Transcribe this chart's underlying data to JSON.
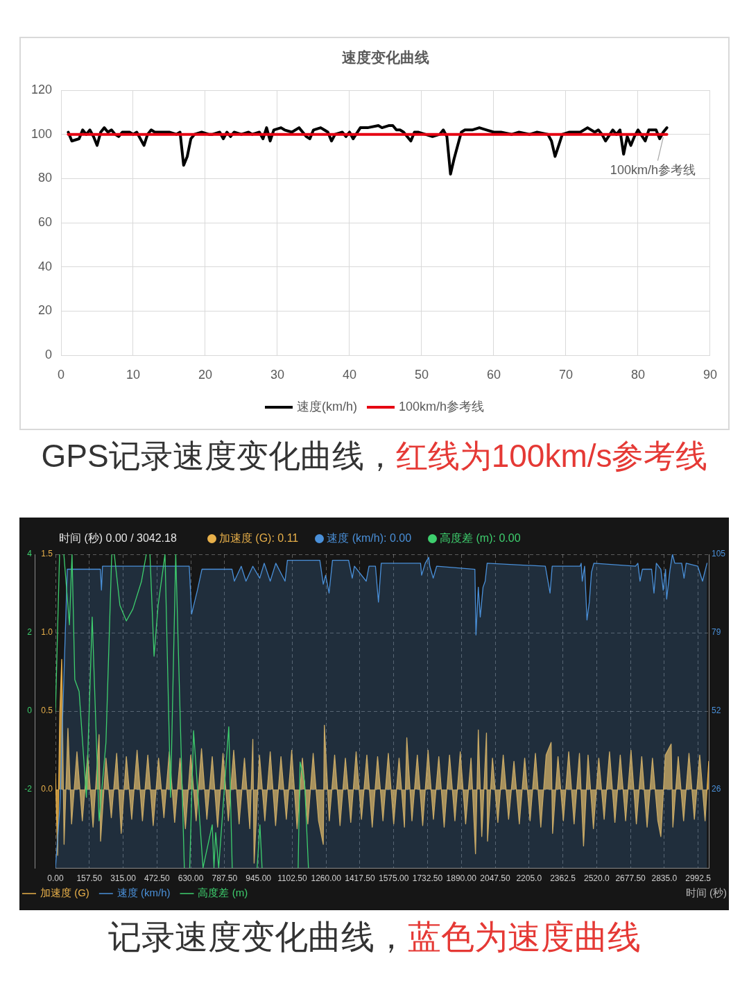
{
  "chart_data": [
    {
      "type": "line",
      "title": "速度变化曲线",
      "xlim": [
        0,
        90
      ],
      "xticks": [
        0,
        10,
        20,
        30,
        40,
        50,
        60,
        70,
        80,
        90
      ],
      "ylim": [
        0,
        120
      ],
      "yticks": [
        0,
        20,
        40,
        60,
        80,
        100,
        120
      ],
      "grid": true,
      "legend": "bottom",
      "series": [
        {
          "name": "速度(km/h)",
          "color": "#000000",
          "x": [
            1,
            1.5,
            2.5,
            3,
            3.5,
            4,
            4.5,
            5,
            5.5,
            6,
            6.5,
            7,
            7.5,
            8,
            8.5,
            9,
            9.5,
            10,
            10.5,
            11.5,
            12,
            12.5,
            13,
            14,
            15,
            16,
            16.5,
            17,
            17.5,
            18,
            18.5,
            19.5,
            20.5,
            21,
            22,
            22.5,
            23,
            23.5,
            24,
            25,
            26,
            26.5,
            27.5,
            28,
            28.5,
            29,
            29.5,
            30.5,
            31,
            32,
            33,
            34,
            34.5,
            35,
            36,
            36.5,
            37,
            37.5,
            38,
            39,
            39.5,
            40,
            40.5,
            41.5,
            42.5,
            44,
            44.5,
            45.5,
            46,
            46.5,
            47,
            47.5,
            48.5,
            49,
            49.5,
            50.5,
            51.5,
            52.5,
            53,
            53.5,
            54,
            54.5,
            55,
            55.5,
            56,
            57,
            58,
            59,
            60,
            61,
            62.5,
            63.5,
            65,
            66,
            67.5,
            68,
            68.5,
            69,
            69.5,
            70.5,
            72,
            73,
            74,
            74.5,
            75,
            75.5,
            76.5,
            77,
            77.5,
            78,
            78.5,
            79,
            79.5,
            80,
            81,
            81.5,
            82.5,
            83,
            83.5,
            84
          ],
          "values": [
            101,
            97,
            98,
            102,
            100,
            102,
            99,
            95,
            101,
            103,
            101,
            102,
            100,
            99,
            101,
            101,
            101,
            100,
            101,
            95,
            100,
            102,
            101,
            101,
            101,
            100,
            101,
            86,
            90,
            98,
            100,
            101,
            100,
            100,
            101,
            98,
            101,
            99,
            101,
            100,
            101,
            100,
            101,
            98,
            103,
            97,
            102,
            103,
            102,
            101,
            103,
            99,
            98,
            102,
            103,
            102,
            101,
            97,
            100,
            101,
            99,
            101,
            98,
            103,
            103,
            104,
            103,
            104,
            104,
            102,
            102,
            101,
            97,
            101,
            101,
            100,
            99,
            100,
            102,
            99,
            82,
            89,
            95,
            101,
            102,
            102,
            103,
            102,
            101,
            101,
            100,
            101,
            100,
            101,
            100,
            97,
            90,
            95,
            100,
            101,
            101,
            103,
            101,
            102,
            100,
            97,
            102,
            100,
            102,
            91,
            99,
            95,
            99,
            102,
            97,
            102,
            102,
            98,
            101,
            103
          ]
        },
        {
          "name": "100km/h参考线",
          "color": "#e60012",
          "x": [
            1,
            84
          ],
          "values": [
            100,
            100
          ]
        }
      ],
      "annotations": [
        {
          "text": "100km/h参考线",
          "x": 83.5,
          "y": 100
        },
        "GPS记录速度变化曲线，",
        "红线为100km/s参考线"
      ]
    },
    {
      "type": "area",
      "xlabel": "时间 (秒)",
      "xlim": [
        0,
        3042.18
      ],
      "xticks": [
        {
          "value": 0,
          "label": "0.00"
        },
        {
          "value": 157.5,
          "label": "157.50"
        },
        {
          "value": 315,
          "label": "315.00"
        },
        {
          "value": 472.5,
          "label": "472.50"
        },
        {
          "value": 630,
          "label": "630.00"
        },
        {
          "value": 787.5,
          "label": "787.50"
        },
        {
          "value": 945,
          "label": "945.00"
        },
        {
          "value": 1102.5,
          "label": "1102.50"
        },
        {
          "value": 1260,
          "label": "1260.00"
        },
        {
          "value": 1417.5,
          "label": "1417.50"
        },
        {
          "value": 1575,
          "label": "1575.00"
        },
        {
          "value": 1732.5,
          "label": "1732.50"
        },
        {
          "value": 1890,
          "label": "1890.00"
        },
        {
          "value": 2047.5,
          "label": "2047.50"
        },
        {
          "value": 2205,
          "label": "2205.0"
        },
        2362.5,
        {
          "value": 2520,
          "label": "2520.0"
        },
        {
          "value": 2677.5,
          "label": "2677.50"
        },
        {
          "value": 2835,
          "label": "2835.0"
        },
        2992.5
      ],
      "ylim": [
        -0.5,
        1.5
      ],
      "yticks": [
        {
          "value": 0,
          "label": "0.0"
        },
        0.5,
        {
          "value": 1,
          "label": "1.0"
        },
        1.5
      ],
      "y2lim": [
        0,
        105
      ],
      "y2ticks": [
        {
          "value": 26.25,
          "label": "26"
        },
        {
          "value": 52.5,
          "label": "52"
        },
        {
          "value": 78.75,
          "label": "79"
        },
        105
      ],
      "y3lim": [
        -4,
        4
      ],
      "y3ticks": [
        -2,
        0,
        2,
        4
      ],
      "grid": true,
      "legend": "bottom left",
      "series": [
        {
          "name": "加速度 (G)",
          "color": "#e8b04a",
          "x": [
            0,
            10,
            20,
            29,
            40,
            58,
            75,
            100,
            125,
            150,
            175,
            203,
            210,
            235,
            260,
            285,
            306,
            330,
            355,
            380,
            405,
            430,
            455,
            480,
            505,
            530,
            555,
            580,
            605,
            630,
            655,
            680,
            705,
            730,
            755,
            780,
            805,
            830,
            855,
            880,
            905,
            919,
            925,
            950,
            975,
            1000,
            1025,
            1050,
            1075,
            1100,
            1125,
            1150,
            1175,
            1200,
            1225,
            1247,
            1252,
            1275,
            1300,
            1325,
            1350,
            1375,
            1400,
            1425,
            1450,
            1475,
            1500,
            1525,
            1550,
            1575,
            1600,
            1625,
            1636,
            1660,
            1685,
            1710,
            1735,
            1760,
            1785,
            1810,
            1835,
            1860,
            1885,
            1910,
            1935,
            1956,
            1969,
            1985,
            2007,
            2012,
            2035,
            2060,
            2085,
            2110,
            2135,
            2160,
            2185,
            2210,
            2235,
            2260,
            2285,
            2308,
            2315,
            2340,
            2365,
            2390,
            2415,
            2440,
            2459,
            2480,
            2505,
            2530,
            2555,
            2580,
            2605,
            2630,
            2655,
            2680,
            2705,
            2730,
            2755,
            2780,
            2805,
            2819,
            2840,
            2867,
            2875,
            2900,
            2925,
            2950,
            2975,
            3000,
            3025,
            3042
          ],
          "values": [
            0.1,
            -0.42,
            0.48,
            0.83,
            -0.35,
            0.39,
            -0.22,
            0.24,
            -0.2,
            0.22,
            -0.24,
            0.35,
            -0.33,
            0.2,
            -0.18,
            0.23,
            -0.28,
            0.21,
            -0.19,
            0.25,
            -0.2,
            0.22,
            -0.23,
            0.2,
            -0.18,
            0.24,
            -0.21,
            0.2,
            -0.25,
            0.22,
            -0.2,
            0.26,
            -0.19,
            0.21,
            -0.24,
            0.23,
            -0.2,
            0.25,
            -0.22,
            0.2,
            -0.25,
            0.32,
            -0.47,
            0.22,
            -0.2,
            0.24,
            -0.23,
            0.21,
            -0.19,
            0.25,
            -0.25,
            0.2,
            -0.22,
            0.23,
            -0.2,
            -0.35,
            0.41,
            -0.2,
            0.22,
            -0.23,
            0.2,
            -0.21,
            0.24,
            -0.19,
            0.22,
            -0.24,
            0.21,
            -0.2,
            0.23,
            -0.22,
            0.2,
            -0.24,
            0.33,
            -0.2,
            0.22,
            -0.23,
            0.25,
            -0.19,
            0.21,
            -0.24,
            0.22,
            -0.2,
            0.24,
            -0.22,
            0.2,
            -0.41,
            0.38,
            -0.3,
            0.36,
            -0.33,
            0.2,
            -0.21,
            0.22,
            -0.19,
            0.18,
            -0.22,
            0.2,
            -0.2,
            0.23,
            -0.24,
            0.22,
            0.3,
            -0.28,
            0.21,
            -0.2,
            0.24,
            -0.22,
            0.23,
            -0.36,
            0.22,
            -0.25,
            0.2,
            -0.19,
            0.24,
            -0.21,
            0.22,
            -0.2,
            0.25,
            -0.22,
            0.21,
            -0.24,
            0.2,
            -0.2,
            -0.3,
            0.22,
            0.29,
            -0.24,
            0.21,
            -0.2,
            0.23,
            -0.19,
            0.22,
            -0.2,
            0.18
          ]
        },
        {
          "name": "速度 (km/h)",
          "color": "#4a90d9",
          "axis": "y2",
          "x": [
            0,
            20,
            55,
            100,
            209,
            214,
            219,
            623,
            634,
            661,
            682,
            822,
            833,
            865,
            887,
            919,
            951,
            972,
            1000,
            1026,
            1069,
            1080,
            1231,
            1247,
            1258,
            1274,
            1290,
            1365,
            1382,
            1392,
            1447,
            1460,
            1490,
            1504,
            1517,
            1700,
            1705,
            1722,
            1738,
            1743,
            1759,
            1775,
            1953,
            1958,
            1969,
            1978,
            1991,
            2001,
            2010,
            2281,
            2303,
            2313,
            2443,
            2448,
            2453,
            2464,
            2475,
            2486,
            2496,
            2507,
            2701,
            2712,
            2722,
            2733,
            2776,
            2787,
            2798,
            2819,
            2830,
            2841,
            2846,
            2862,
            2873,
            2884,
            2916,
            2927,
            2937,
            2991,
            3013,
            3034
          ],
          "values": [
            0,
            20,
            100,
            100,
            100,
            93,
            101,
            101,
            85,
            93,
            100,
            100,
            96,
            101,
            96,
            101,
            97,
            102,
            96,
            102,
            96,
            103,
            103,
            95,
            98,
            92,
            103,
            103,
            97,
            101,
            96,
            101,
            101,
            89,
            102,
            102,
            98,
            102,
            104,
            101,
            97,
            101,
            100,
            78,
            94,
            84,
            94,
            96,
            102,
            101,
            92,
            101,
            101,
            102,
            96,
            101,
            83,
            89,
            99,
            102,
            101,
            102,
            96,
            100,
            100,
            92,
            102,
            100,
            93,
            100,
            90,
            100,
            105,
            102,
            102,
            97,
            102,
            101,
            96,
            102
          ]
        },
        {
          "name": "高度差 (m)",
          "color": "#3ecf6e",
          "type": "line",
          "axis": "y3",
          "x": [
            0,
            19,
            29,
            39,
            65,
            77,
            90,
            110,
            144,
            171,
            203,
            235,
            262,
            268,
            274,
            300,
            330,
            360,
            400,
            423,
            431,
            440,
            459,
            478,
            510,
            536,
            560,
            600,
            612,
            625,
            643,
            687,
            730,
            738,
            746,
            760,
            807,
            823,
            880,
            939,
            952,
            962,
            1050,
            1130,
            1139,
            1160,
            1178
          ],
          "values": [
            0,
            4,
            null,
            4,
            2.2,
            4,
            0.8,
            0.5,
            -2.2,
            2.4,
            -2.8,
            -0.8,
            4,
            null,
            4,
            2.7,
            2.3,
            2.6,
            3.3,
            4,
            null,
            4,
            1.4,
            2.7,
            4,
            -2.2,
            4,
            -4,
            null,
            -4,
            -0.5,
            -4,
            -2.9,
            -4,
            -3.1,
            -4,
            -0.4,
            -4,
            null,
            -4,
            -2.9,
            -4,
            null,
            -4,
            -1.3,
            -1.8,
            -4
          ]
        }
      ],
      "annotations": [
        "时间 (秒) 0.00 / 3042.18",
        "加速度 (G): 0.11",
        "速度 (km/h): 0.00",
        "高度差 (m): 0.00",
        "记录速度变化曲线，",
        "蓝色为速度曲线"
      ]
    }
  ]
}
